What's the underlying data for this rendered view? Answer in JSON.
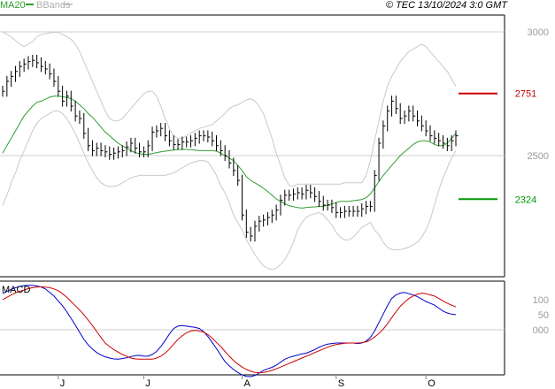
{
  "header": {
    "ma_label": "MA20",
    "bb_label": "BBands",
    "source": "© TEC 13/10/2024 3:0 GMT"
  },
  "macd_label": "MACD",
  "colors": {
    "price": "#000000",
    "ma20": "#2e9d2e",
    "bbands": "#c9c9c9",
    "resistance": "#cc0000",
    "support": "#009900",
    "macd": "#0000cc",
    "signal": "#cc0000",
    "grid": "#cfcfcf",
    "axis": "#888888"
  },
  "chart_data": [
    {
      "type": "line",
      "name": "price-panel",
      "y_ticks": [
        3000,
        2500
      ],
      "y_tick_labels": [
        "3000",
        "2500"
      ],
      "levels": [
        {
          "label": "2751",
          "value": 2751,
          "color": "#cc0000"
        },
        {
          "label": "2324",
          "value": 2324,
          "color": "#009900"
        }
      ],
      "x_month_labels": [
        {
          "label": "J",
          "index": 13
        },
        {
          "label": "J",
          "index": 33
        },
        {
          "label": "A",
          "index": 56
        },
        {
          "label": "S",
          "index": 78
        },
        {
          "label": "O",
          "index": 99
        }
      ],
      "close": [
        2760,
        2800,
        2820,
        2840,
        2860,
        2870,
        2880,
        2885,
        2875,
        2860,
        2850,
        2830,
        2800,
        2760,
        2720,
        2740,
        2700,
        2660,
        2650,
        2590,
        2540,
        2520,
        2530,
        2520,
        2515,
        2505,
        2510,
        2515,
        2520,
        2535,
        2550,
        2530,
        2515,
        2515,
        2540,
        2595,
        2600,
        2610,
        2580,
        2560,
        2545,
        2545,
        2555,
        2555,
        2560,
        2570,
        2580,
        2580,
        2575,
        2560,
        2540,
        2520,
        2500,
        2470,
        2440,
        2400,
        2260,
        2190,
        2175,
        2215,
        2235,
        2240,
        2250,
        2260,
        2280,
        2320,
        2340,
        2340,
        2345,
        2350,
        2345,
        2360,
        2350,
        2335,
        2315,
        2300,
        2300,
        2290,
        2270,
        2270,
        2275,
        2275,
        2275,
        2275,
        2285,
        2295,
        2295,
        2420,
        2550,
        2620,
        2680,
        2720,
        2690,
        2650,
        2660,
        2680,
        2660,
        2640,
        2620,
        2600,
        2580,
        2570,
        2560,
        2550,
        2540,
        2560,
        2580
      ],
      "ma20": [
        2510,
        2540,
        2570,
        2600,
        2630,
        2660,
        2680,
        2700,
        2715,
        2720,
        2728,
        2736,
        2740,
        2740,
        2738,
        2735,
        2730,
        2720,
        2705,
        2690,
        2670,
        2655,
        2635,
        2615,
        2595,
        2580,
        2565,
        2550,
        2540,
        2530,
        2520,
        2512,
        2508,
        2505,
        2505,
        2508,
        2512,
        2515,
        2518,
        2520,
        2522,
        2525,
        2525,
        2525,
        2524,
        2522,
        2520,
        2520,
        2520,
        2520,
        2518,
        2510,
        2500,
        2490,
        2480,
        2460,
        2440,
        2415,
        2400,
        2390,
        2380,
        2368,
        2355,
        2340,
        2325,
        2315,
        2305,
        2298,
        2294,
        2290,
        2288,
        2290,
        2292,
        2293,
        2295,
        2295,
        2300,
        2305,
        2310,
        2315,
        2315,
        2315,
        2318,
        2320,
        2322,
        2330,
        2345,
        2370,
        2395,
        2420,
        2440,
        2460,
        2480,
        2500,
        2515,
        2530,
        2545,
        2555,
        2560,
        2560,
        2555,
        2545,
        2540,
        2540,
        2550,
        2570,
        2590
      ],
      "bb_upper": [
        3000,
        2990,
        2980,
        2965,
        2950,
        2940,
        2950,
        2960,
        2980,
        2990,
        2992,
        2996,
        2998,
        2998,
        2990,
        2980,
        2970,
        2950,
        2920,
        2880,
        2840,
        2800,
        2760,
        2720,
        2680,
        2650,
        2640,
        2640,
        2650,
        2670,
        2690,
        2710,
        2730,
        2750,
        2760,
        2760,
        2740,
        2700,
        2650,
        2610,
        2580,
        2570,
        2570,
        2580,
        2590,
        2600,
        2610,
        2615,
        2620,
        2625,
        2640,
        2655,
        2670,
        2690,
        2700,
        2705,
        2715,
        2725,
        2730,
        2720,
        2700,
        2670,
        2620,
        2570,
        2510,
        2460,
        2410,
        2380,
        2375,
        2385,
        2385,
        2385,
        2385,
        2385,
        2385,
        2385,
        2385,
        2385,
        2385,
        2385,
        2390,
        2390,
        2390,
        2390,
        2390,
        2420,
        2480,
        2560,
        2640,
        2720,
        2780,
        2820,
        2850,
        2880,
        2900,
        2920,
        2930,
        2940,
        2950,
        2940,
        2920,
        2900,
        2880,
        2860,
        2840,
        2810,
        2780
      ],
      "bb_lower": [
        2300,
        2340,
        2390,
        2430,
        2480,
        2520,
        2560,
        2600,
        2630,
        2650,
        2660,
        2670,
        2680,
        2680,
        2670,
        2650,
        2620,
        2590,
        2550,
        2510,
        2470,
        2440,
        2410,
        2390,
        2380,
        2375,
        2375,
        2380,
        2390,
        2400,
        2410,
        2415,
        2420,
        2420,
        2420,
        2420,
        2420,
        2420,
        2420,
        2425,
        2430,
        2440,
        2450,
        2460,
        2470,
        2475,
        2480,
        2480,
        2475,
        2450,
        2420,
        2380,
        2350,
        2310,
        2260,
        2230,
        2200,
        2160,
        2130,
        2100,
        2075,
        2055,
        2045,
        2040,
        2045,
        2060,
        2080,
        2110,
        2150,
        2200,
        2230,
        2250,
        2260,
        2265,
        2270,
        2260,
        2240,
        2220,
        2190,
        2170,
        2160,
        2160,
        2170,
        2190,
        2210,
        2220,
        2230,
        2200,
        2180,
        2150,
        2130,
        2120,
        2120,
        2120,
        2125,
        2130,
        2140,
        2150,
        2170,
        2200,
        2240,
        2300,
        2360,
        2410,
        2450,
        2490,
        2520
      ]
    },
    {
      "type": "line",
      "name": "macd-panel",
      "y_ticks": [
        100,
        50,
        0
      ],
      "y_tick_labels": [
        "100",
        "50",
        "000"
      ],
      "series": [
        {
          "key": "macd",
          "values": [
            120,
            128,
            134,
            140,
            144,
            147,
            148,
            148,
            146,
            142,
            136,
            124,
            112,
            96,
            80,
            60,
            38,
            16,
            -8,
            -32,
            -50,
            -64,
            -76,
            -84,
            -90,
            -94,
            -97,
            -98,
            -96,
            -93,
            -89,
            -86,
            -85,
            -88,
            -88,
            -82,
            -72,
            -56,
            -36,
            -14,
            4,
            12,
            14,
            12,
            10,
            8,
            4,
            -6,
            -22,
            -42,
            -62,
            -84,
            -106,
            -120,
            -132,
            -142,
            -150,
            -155,
            -156,
            -152,
            -144,
            -135,
            -130,
            -125,
            -118,
            -108,
            -98,
            -92,
            -88,
            -84,
            -80,
            -78,
            -72,
            -66,
            -58,
            -52,
            -48,
            -46,
            -44,
            -44,
            -44,
            -44,
            -44,
            -46,
            -44,
            -38,
            -26,
            -4,
            24,
            52,
            80,
            104,
            116,
            122,
            124,
            120,
            116,
            110,
            102,
            94,
            88,
            82,
            72,
            62,
            56,
            52,
            50
          ]
        },
        {
          "key": "signal",
          "values": [
            100,
            108,
            116,
            123,
            128,
            132,
            137,
            140,
            142,
            143,
            142,
            140,
            136,
            130,
            120,
            108,
            94,
            80,
            66,
            50,
            32,
            14,
            -6,
            -26,
            -44,
            -56,
            -66,
            -74,
            -82,
            -88,
            -94,
            -97,
            -98,
            -98,
            -98,
            -98,
            -94,
            -88,
            -78,
            -64,
            -48,
            -32,
            -20,
            -10,
            -4,
            -2,
            -4,
            -8,
            -16,
            -28,
            -42,
            -56,
            -72,
            -88,
            -102,
            -114,
            -124,
            -132,
            -138,
            -142,
            -143,
            -142,
            -139,
            -135,
            -130,
            -124,
            -118,
            -112,
            -106,
            -100,
            -94,
            -88,
            -82,
            -76,
            -70,
            -64,
            -58,
            -53,
            -49,
            -47,
            -45,
            -44,
            -44,
            -44,
            -43,
            -40,
            -34,
            -24,
            -12,
            2,
            20,
            40,
            60,
            78,
            92,
            104,
            112,
            118,
            122,
            120,
            116,
            112,
            104,
            96,
            88,
            82,
            76
          ]
        }
      ]
    }
  ]
}
